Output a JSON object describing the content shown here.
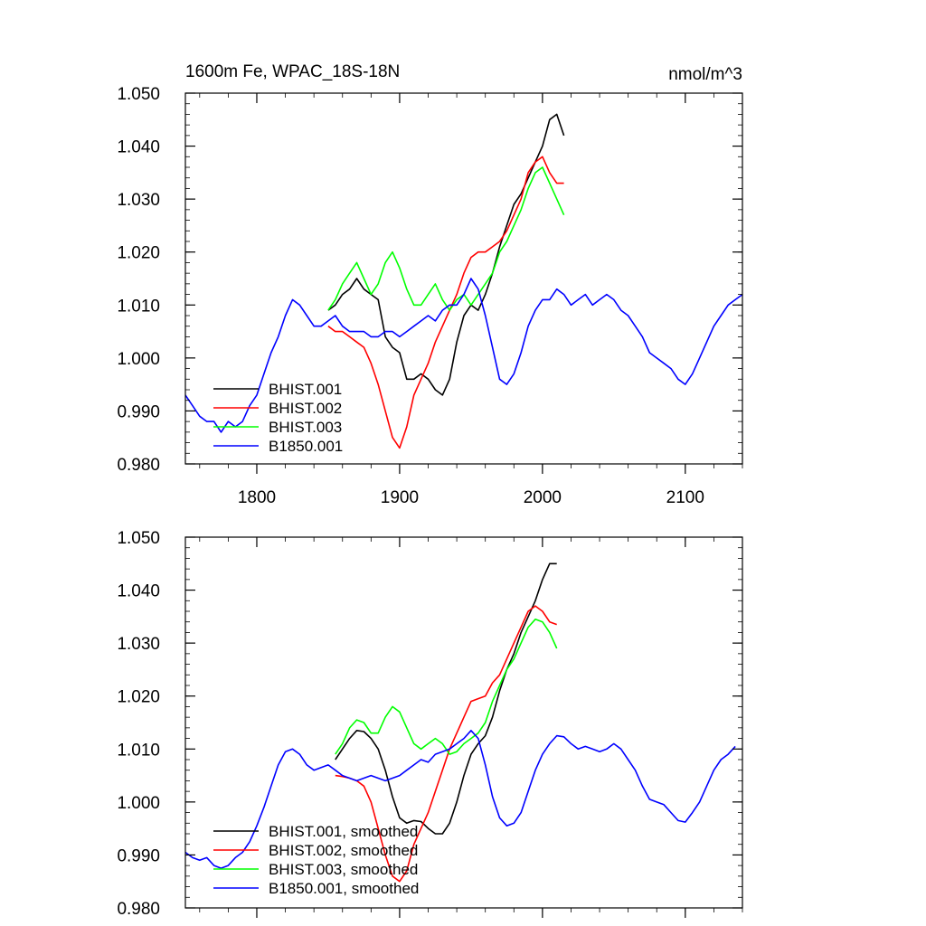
{
  "chart_data": [
    {
      "type": "line",
      "title": "1600m Fe, WPAC_18S-18N",
      "units": "nmol/m^3",
      "xlim": [
        1750,
        2140
      ],
      "ylim": [
        0.98,
        1.05
      ],
      "xticks": [
        1800,
        1900,
        2000,
        2100
      ],
      "xtick_labels": [
        "1800",
        "1900",
        "2000",
        "2100"
      ],
      "yticks": [
        0.98,
        0.99,
        1.0,
        1.01,
        1.02,
        1.03,
        1.04,
        1.05
      ],
      "ytick_labels": [
        "0.980",
        "0.990",
        "1.000",
        "1.010",
        "1.020",
        "1.030",
        "1.040",
        "1.050"
      ],
      "grid": false,
      "legend_position": "bottom-left",
      "series": [
        {
          "name": "BHIST.001",
          "color": "#000000",
          "x": [
            1850,
            1855,
            1860,
            1865,
            1870,
            1875,
            1880,
            1885,
            1890,
            1895,
            1900,
            1905,
            1910,
            1915,
            1920,
            1925,
            1930,
            1935,
            1940,
            1945,
            1950,
            1955,
            1960,
            1965,
            1970,
            1975,
            1980,
            1985,
            1990,
            1995,
            2000,
            2005,
            2010,
            2015
          ],
          "y": [
            1.009,
            1.01,
            1.012,
            1.013,
            1.015,
            1.013,
            1.012,
            1.011,
            1.004,
            1.002,
            1.001,
            0.996,
            0.996,
            0.997,
            0.996,
            0.994,
            0.993,
            0.996,
            1.003,
            1.008,
            1.01,
            1.009,
            1.012,
            1.016,
            1.021,
            1.025,
            1.029,
            1.031,
            1.034,
            1.037,
            1.04,
            1.045,
            1.046,
            1.042
          ]
        },
        {
          "name": "BHIST.002",
          "color": "#ff0000",
          "x": [
            1850,
            1855,
            1860,
            1865,
            1870,
            1875,
            1880,
            1885,
            1890,
            1895,
            1900,
            1905,
            1910,
            1915,
            1920,
            1925,
            1930,
            1935,
            1940,
            1945,
            1950,
            1955,
            1960,
            1965,
            1970,
            1975,
            1980,
            1985,
            1990,
            1995,
            2000,
            2005,
            2010,
            2015
          ],
          "y": [
            1.006,
            1.005,
            1.005,
            1.004,
            1.003,
            1.002,
            0.999,
            0.995,
            0.99,
            0.985,
            0.983,
            0.987,
            0.993,
            0.996,
            0.999,
            1.003,
            1.006,
            1.009,
            1.012,
            1.016,
            1.019,
            1.02,
            1.02,
            1.021,
            1.022,
            1.024,
            1.027,
            1.03,
            1.035,
            1.037,
            1.038,
            1.035,
            1.033,
            1.033
          ]
        },
        {
          "name": "BHIST.003",
          "color": "#00ff00",
          "x": [
            1850,
            1855,
            1860,
            1865,
            1870,
            1875,
            1880,
            1885,
            1890,
            1895,
            1900,
            1905,
            1910,
            1915,
            1920,
            1925,
            1930,
            1935,
            1940,
            1945,
            1950,
            1955,
            1960,
            1965,
            1970,
            1975,
            1980,
            1985,
            1990,
            1995,
            2000,
            2005,
            2010,
            2015
          ],
          "y": [
            1.009,
            1.011,
            1.014,
            1.016,
            1.018,
            1.015,
            1.012,
            1.014,
            1.018,
            1.02,
            1.017,
            1.013,
            1.01,
            1.01,
            1.012,
            1.014,
            1.011,
            1.009,
            1.011,
            1.012,
            1.01,
            1.012,
            1.014,
            1.016,
            1.02,
            1.022,
            1.025,
            1.028,
            1.032,
            1.035,
            1.036,
            1.033,
            1.03,
            1.027
          ]
        },
        {
          "name": "B1850.001",
          "color": "#0000ff",
          "x": [
            1750,
            1755,
            1760,
            1765,
            1770,
            1775,
            1780,
            1785,
            1790,
            1795,
            1800,
            1805,
            1810,
            1815,
            1820,
            1825,
            1830,
            1835,
            1840,
            1845,
            1850,
            1855,
            1860,
            1865,
            1870,
            1875,
            1880,
            1885,
            1890,
            1895,
            1900,
            1905,
            1910,
            1915,
            1920,
            1925,
            1930,
            1935,
            1940,
            1945,
            1950,
            1955,
            1960,
            1965,
            1970,
            1975,
            1980,
            1985,
            1990,
            1995,
            2000,
            2005,
            2010,
            2015,
            2020,
            2025,
            2030,
            2035,
            2040,
            2045,
            2050,
            2055,
            2060,
            2065,
            2070,
            2075,
            2080,
            2085,
            2090,
            2095,
            2100,
            2105,
            2110,
            2115,
            2120,
            2125,
            2130,
            2135,
            2140
          ],
          "y": [
            0.993,
            0.991,
            0.989,
            0.988,
            0.988,
            0.986,
            0.988,
            0.987,
            0.988,
            0.991,
            0.993,
            0.997,
            1.001,
            1.004,
            1.008,
            1.011,
            1.01,
            1.008,
            1.006,
            1.006,
            1.007,
            1.008,
            1.006,
            1.005,
            1.005,
            1.005,
            1.004,
            1.004,
            1.005,
            1.005,
            1.004,
            1.005,
            1.006,
            1.007,
            1.008,
            1.007,
            1.009,
            1.01,
            1.01,
            1.012,
            1.015,
            1.013,
            1.008,
            1.002,
            0.996,
            0.995,
            0.997,
            1.001,
            1.006,
            1.009,
            1.011,
            1.011,
            1.013,
            1.012,
            1.01,
            1.011,
            1.012,
            1.01,
            1.011,
            1.012,
            1.011,
            1.009,
            1.008,
            1.006,
            1.004,
            1.001,
            1.0,
            0.999,
            0.998,
            0.996,
            0.995,
            0.997,
            1.0,
            1.003,
            1.006,
            1.008,
            1.01,
            1.011,
            1.012
          ]
        }
      ]
    },
    {
      "type": "line",
      "title": "",
      "xlim": [
        1750,
        2140
      ],
      "ylim": [
        0.98,
        1.05
      ],
      "xticks": [
        1800,
        1900,
        2000,
        2100
      ],
      "yticks": [
        0.98,
        0.99,
        1.0,
        1.01,
        1.02,
        1.03,
        1.04,
        1.05
      ],
      "ytick_labels": [
        "0.980",
        "0.990",
        "1.000",
        "1.010",
        "1.020",
        "1.030",
        "1.040",
        "1.050"
      ],
      "grid": false,
      "legend_position": "bottom-left",
      "series": [
        {
          "name": "BHIST.001, smoothed",
          "color": "#000000",
          "x": [
            1855,
            1860,
            1865,
            1870,
            1875,
            1880,
            1885,
            1890,
            1895,
            1900,
            1905,
            1910,
            1915,
            1920,
            1925,
            1930,
            1935,
            1940,
            1945,
            1950,
            1955,
            1960,
            1965,
            1970,
            1975,
            1980,
            1985,
            1990,
            1995,
            2000,
            2005,
            2010
          ],
          "y": [
            1.008,
            1.01,
            1.012,
            1.0135,
            1.0133,
            1.012,
            1.01,
            1.006,
            1.001,
            0.997,
            0.996,
            0.9965,
            0.9963,
            0.995,
            0.994,
            0.994,
            0.996,
            1.0,
            1.005,
            1.009,
            1.011,
            1.0125,
            1.016,
            1.021,
            1.025,
            1.028,
            1.032,
            1.035,
            1.038,
            1.042,
            1.045,
            1.045
          ]
        },
        {
          "name": "BHIST.002, smoothed",
          "color": "#ff0000",
          "x": [
            1855,
            1860,
            1865,
            1870,
            1875,
            1880,
            1885,
            1890,
            1895,
            1900,
            1905,
            1910,
            1915,
            1920,
            1925,
            1930,
            1935,
            1940,
            1945,
            1950,
            1955,
            1960,
            1965,
            1970,
            1975,
            1980,
            1985,
            1990,
            1995,
            2000,
            2005,
            2010
          ],
          "y": [
            1.005,
            1.0048,
            1.0045,
            1.004,
            1.003,
            1.0,
            0.995,
            0.99,
            0.986,
            0.985,
            0.987,
            0.992,
            0.995,
            0.998,
            1.002,
            1.006,
            1.01,
            1.013,
            1.016,
            1.019,
            1.0195,
            1.02,
            1.0225,
            1.024,
            1.027,
            1.03,
            1.033,
            1.036,
            1.037,
            1.036,
            1.034,
            1.0335
          ]
        },
        {
          "name": "BHIST.003, smoothed",
          "color": "#00ff00",
          "x": [
            1855,
            1860,
            1865,
            1870,
            1875,
            1880,
            1885,
            1890,
            1895,
            1900,
            1905,
            1910,
            1915,
            1920,
            1925,
            1930,
            1935,
            1940,
            1945,
            1950,
            1955,
            1960,
            1965,
            1970,
            1975,
            1980,
            1985,
            1990,
            1995,
            2000,
            2005,
            2010
          ],
          "y": [
            1.009,
            1.011,
            1.014,
            1.0155,
            1.015,
            1.013,
            1.013,
            1.016,
            1.018,
            1.017,
            1.014,
            1.011,
            1.01,
            1.011,
            1.012,
            1.011,
            1.009,
            1.0095,
            1.011,
            1.012,
            1.013,
            1.015,
            1.019,
            1.022,
            1.025,
            1.027,
            1.03,
            1.033,
            1.0345,
            1.034,
            1.032,
            1.029
          ]
        },
        {
          "name": "B1850.001, smoothed",
          "color": "#0000ff",
          "x": [
            1750,
            1755,
            1760,
            1765,
            1770,
            1775,
            1780,
            1785,
            1790,
            1795,
            1800,
            1805,
            1810,
            1815,
            1820,
            1825,
            1830,
            1835,
            1840,
            1845,
            1850,
            1855,
            1860,
            1865,
            1870,
            1875,
            1880,
            1885,
            1890,
            1895,
            1900,
            1905,
            1910,
            1915,
            1920,
            1925,
            1930,
            1935,
            1940,
            1945,
            1950,
            1955,
            1960,
            1965,
            1970,
            1975,
            1980,
            1985,
            1990,
            1995,
            2000,
            2005,
            2010,
            2015,
            2020,
            2025,
            2030,
            2035,
            2040,
            2045,
            2050,
            2055,
            2060,
            2065,
            2070,
            2075,
            2080,
            2085,
            2090,
            2095,
            2100,
            2105,
            2110,
            2115,
            2120,
            2125,
            2130,
            2135
          ],
          "y": [
            0.9905,
            0.9895,
            0.989,
            0.9895,
            0.988,
            0.9875,
            0.988,
            0.9895,
            0.9905,
            0.9925,
            0.9955,
            0.999,
            1.003,
            1.007,
            1.0095,
            1.01,
            1.009,
            1.007,
            1.006,
            1.0065,
            1.007,
            1.006,
            1.005,
            1.0045,
            1.004,
            1.0045,
            1.005,
            1.0045,
            1.004,
            1.0045,
            1.005,
            1.006,
            1.007,
            1.008,
            1.0075,
            1.009,
            1.0095,
            1.01,
            1.011,
            1.012,
            1.0135,
            1.012,
            1.007,
            1.001,
            0.997,
            0.9955,
            0.996,
            0.998,
            1.002,
            1.006,
            1.009,
            1.011,
            1.0125,
            1.0123,
            1.011,
            1.01,
            1.0105,
            1.01,
            1.0095,
            1.01,
            1.011,
            1.01,
            1.008,
            1.006,
            1.003,
            1.0005,
            1.0,
            0.9995,
            0.998,
            0.9965,
            0.9962,
            0.998,
            1.0,
            1.003,
            1.006,
            1.008,
            1.009,
            1.0105
          ]
        }
      ]
    }
  ]
}
